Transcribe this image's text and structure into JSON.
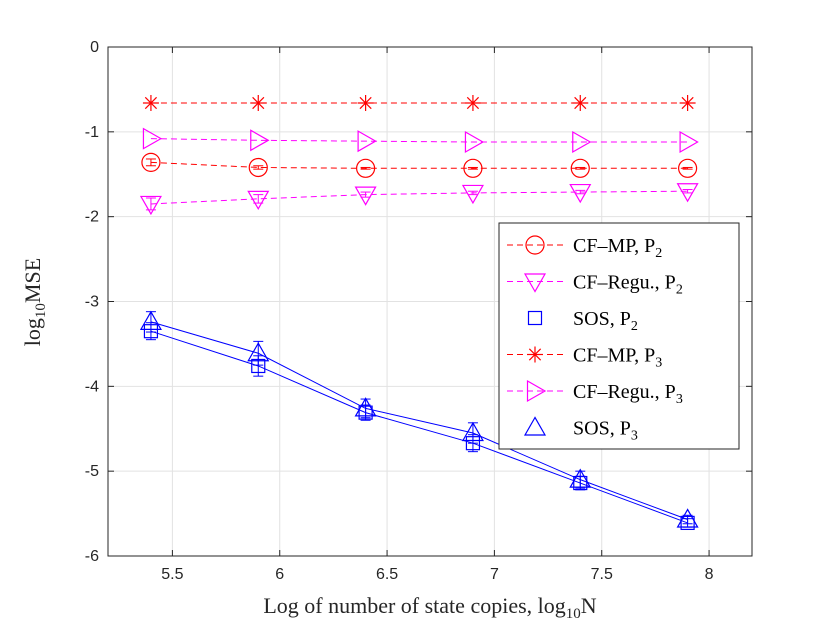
{
  "chart_data": {
    "type": "line",
    "title": "",
    "xlabel": "Log of number of state copies, log",
    "xlabel_sub": "10",
    "xlabel_tail": "N",
    "ylabel": "log",
    "ylabel_sub": "10",
    "ylabel_tail": "MSE",
    "xlim": [
      5.2,
      8.2
    ],
    "ylim": [
      -6,
      0
    ],
    "xticks": [
      "5.5",
      "6",
      "6.5",
      "7",
      "7.5",
      "8"
    ],
    "xtick_values": [
      5.5,
      6,
      6.5,
      7,
      7.5,
      8
    ],
    "yticks": [
      "-6",
      "-5",
      "-4",
      "-3",
      "-2",
      "-1",
      "0"
    ],
    "ytick_values": [
      -6,
      -5,
      -4,
      -3,
      -2,
      -1,
      0
    ],
    "grid": true,
    "legend_position": "right",
    "x": [
      5.4,
      5.9,
      6.4,
      6.9,
      7.4,
      7.9
    ],
    "series": [
      {
        "name": "CF–MP, P",
        "sub": "2",
        "marker": "circle",
        "color": "#ff0000",
        "dash": true,
        "values": [
          -1.36,
          -1.42,
          -1.43,
          -1.43,
          -1.43,
          -1.43
        ],
        "err": [
          0.04,
          0.02,
          0.01,
          0.01,
          0.01,
          0.01
        ]
      },
      {
        "name": "CF–Regu., P",
        "sub": "2",
        "marker": "triangle-down",
        "color": "#ff00ff",
        "dash": true,
        "values": [
          -1.85,
          -1.79,
          -1.74,
          -1.72,
          -1.71,
          -1.7
        ],
        "err": [
          0.07,
          0.05,
          0.03,
          0.02,
          0.02,
          0.02
        ]
      },
      {
        "name": "SOS, P",
        "sub": "2",
        "marker": "square",
        "color": "#0000ff",
        "dash": false,
        "values": [
          -3.35,
          -3.76,
          -4.31,
          -4.67,
          -5.14,
          -5.61
        ],
        "err": [
          0.1,
          0.12,
          0.09,
          0.1,
          0.08,
          0.05
        ]
      },
      {
        "name": "CF–MP, P",
        "sub": "3",
        "marker": "star",
        "color": "#ff0000",
        "dash": true,
        "values": [
          -0.66,
          -0.66,
          -0.66,
          -0.66,
          -0.66,
          -0.66
        ],
        "err": [
          0,
          0,
          0,
          0,
          0,
          0
        ]
      },
      {
        "name": "CF–Regu., P",
        "sub": "3",
        "marker": "triangle-right",
        "color": "#ff00ff",
        "dash": true,
        "values": [
          -1.08,
          -1.1,
          -1.11,
          -1.12,
          -1.12,
          -1.12
        ],
        "err": [
          0,
          0,
          0,
          0,
          0,
          0
        ]
      },
      {
        "name": "SOS, P",
        "sub": "3",
        "marker": "triangle-up",
        "color": "#0000ff",
        "dash": false,
        "values": [
          -3.24,
          -3.61,
          -4.26,
          -4.55,
          -5.1,
          -5.57
        ],
        "err": [
          0.12,
          0.14,
          0.11,
          0.12,
          0.1,
          0.05
        ]
      }
    ]
  }
}
